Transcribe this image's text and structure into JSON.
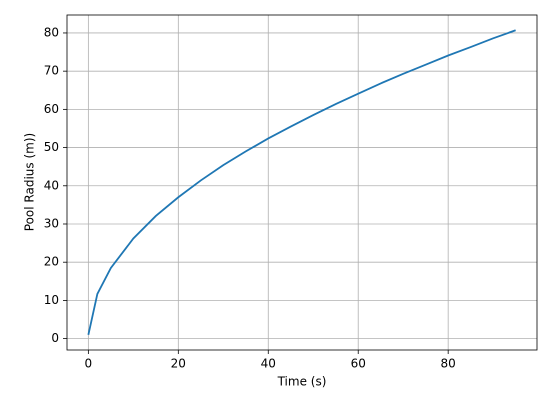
{
  "chart_data": {
    "type": "line",
    "x_label": "Time (s)",
    "y_label": "Pool Radius (m))",
    "x": [
      0,
      2,
      5,
      10,
      15,
      20,
      25,
      30,
      35,
      40,
      45,
      50,
      55,
      60,
      65,
      70,
      75,
      80,
      85,
      90,
      95
    ],
    "series": [
      {
        "color": "#1f77b4",
        "values": [
          1,
          11.7,
          18.5,
          26.2,
          32.1,
          37.0,
          41.4,
          45.4,
          49.0,
          52.4,
          55.5,
          58.5,
          61.4,
          64.1,
          66.8,
          69.3,
          71.7,
          74.1,
          76.3,
          78.6,
          80.7
        ]
      }
    ],
    "xlim": [
      -4.75,
      99.75
    ],
    "ylim": [
      -2.98,
      84.7
    ],
    "xticks": [
      0,
      20,
      40,
      60,
      80
    ],
    "yticks": [
      0,
      10,
      20,
      30,
      40,
      50,
      60,
      70,
      80
    ],
    "grid": true
  }
}
